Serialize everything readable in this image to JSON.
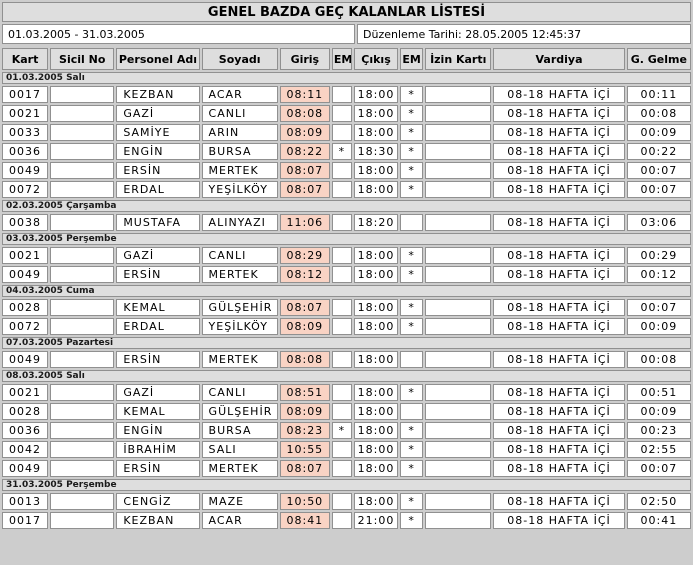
{
  "report": {
    "title": "GENEL BAZDA GEÇ KALANLAR LİSTESİ",
    "date_range": "01.03.2005 - 31.03.2005",
    "prepared_label": "Düzenleme Tarihi: 28.05.2005 12:45:37"
  },
  "colors": {
    "late_highlight": "#f9d3c4",
    "header_bg": "#dedede",
    "page_bg": "#cdcdcd",
    "cell_border": "#909090"
  },
  "table": {
    "columns": [
      "Kart",
      "Sicil No",
      "Personel Adı",
      "Soyadı",
      "Giriş",
      "EM",
      "Çıkış",
      "EM",
      "İzin Kartı",
      "Vardiya",
      "G. Gelme"
    ],
    "groups": [
      {
        "date": "01.03.2005 Salı",
        "rows": [
          {
            "kart": "0017",
            "sicil": "",
            "ad": "KEZBAN",
            "soyad": "ACAR",
            "giris": "08:11",
            "em1": "",
            "cikis": "18:00",
            "em2": "*",
            "izin": "",
            "vardiya": "08-18 HAFTA İÇİ",
            "gec": "00:11"
          },
          {
            "kart": "0021",
            "sicil": "",
            "ad": "GAZİ",
            "soyad": "CANLI",
            "giris": "08:08",
            "em1": "",
            "cikis": "18:00",
            "em2": "*",
            "izin": "",
            "vardiya": "08-18 HAFTA İÇİ",
            "gec": "00:08"
          },
          {
            "kart": "0033",
            "sicil": "",
            "ad": "SAMİYE",
            "soyad": "ARIN",
            "giris": "08:09",
            "em1": "",
            "cikis": "18:00",
            "em2": "*",
            "izin": "",
            "vardiya": "08-18 HAFTA İÇİ",
            "gec": "00:09"
          },
          {
            "kart": "0036",
            "sicil": "",
            "ad": "ENGİN",
            "soyad": "BURSA",
            "giris": "08:22",
            "em1": "*",
            "cikis": "18:30",
            "em2": "*",
            "izin": "",
            "vardiya": "08-18 HAFTA İÇİ",
            "gec": "00:22"
          },
          {
            "kart": "0049",
            "sicil": "",
            "ad": "ERSİN",
            "soyad": "MERTEK",
            "giris": "08:07",
            "em1": "",
            "cikis": "18:00",
            "em2": "*",
            "izin": "",
            "vardiya": "08-18 HAFTA İÇİ",
            "gec": "00:07"
          },
          {
            "kart": "0072",
            "sicil": "",
            "ad": "ERDAL",
            "soyad": "YEŞİLKÖY",
            "giris": "08:07",
            "em1": "",
            "cikis": "18:00",
            "em2": "*",
            "izin": "",
            "vardiya": "08-18 HAFTA İÇİ",
            "gec": "00:07"
          }
        ]
      },
      {
        "date": "02.03.2005 Çarşamba",
        "rows": [
          {
            "kart": "0038",
            "sicil": "",
            "ad": "MUSTAFA",
            "soyad": "ALINYAZI",
            "giris": "11:06",
            "em1": "",
            "cikis": "18:20",
            "em2": "",
            "izin": "",
            "vardiya": "08-18 HAFTA İÇİ",
            "gec": "03:06"
          }
        ]
      },
      {
        "date": "03.03.2005 Perşembe",
        "rows": [
          {
            "kart": "0021",
            "sicil": "",
            "ad": "GAZİ",
            "soyad": "CANLI",
            "giris": "08:29",
            "em1": "",
            "cikis": "18:00",
            "em2": "*",
            "izin": "",
            "vardiya": "08-18 HAFTA İÇİ",
            "gec": "00:29"
          },
          {
            "kart": "0049",
            "sicil": "",
            "ad": "ERSİN",
            "soyad": "MERTEK",
            "giris": "08:12",
            "em1": "",
            "cikis": "18:00",
            "em2": "*",
            "izin": "",
            "vardiya": "08-18 HAFTA İÇİ",
            "gec": "00:12"
          }
        ]
      },
      {
        "date": "04.03.2005 Cuma",
        "rows": [
          {
            "kart": "0028",
            "sicil": "",
            "ad": "KEMAL",
            "soyad": "GÜLŞEHİR",
            "giris": "08:07",
            "em1": "",
            "cikis": "18:00",
            "em2": "*",
            "izin": "",
            "vardiya": "08-18 HAFTA İÇİ",
            "gec": "00:07"
          },
          {
            "kart": "0072",
            "sicil": "",
            "ad": "ERDAL",
            "soyad": "YEŞİLKÖY",
            "giris": "08:09",
            "em1": "",
            "cikis": "18:00",
            "em2": "*",
            "izin": "",
            "vardiya": "08-18 HAFTA İÇİ",
            "gec": "00:09"
          }
        ]
      },
      {
        "date": "07.03.2005 Pazartesi",
        "rows": [
          {
            "kart": "0049",
            "sicil": "",
            "ad": "ERSİN",
            "soyad": "MERTEK",
            "giris": "08:08",
            "em1": "",
            "cikis": "18:00",
            "em2": "",
            "izin": "",
            "vardiya": "08-18 HAFTA İÇİ",
            "gec": "00:08"
          }
        ]
      },
      {
        "date": "08.03.2005 Salı",
        "rows": [
          {
            "kart": "0021",
            "sicil": "",
            "ad": "GAZİ",
            "soyad": "CANLI",
            "giris": "08:51",
            "em1": "",
            "cikis": "18:00",
            "em2": "*",
            "izin": "",
            "vardiya": "08-18 HAFTA İÇİ",
            "gec": "00:51"
          },
          {
            "kart": "0028",
            "sicil": "",
            "ad": "KEMAL",
            "soyad": "GÜLŞEHİR",
            "giris": "08:09",
            "em1": "",
            "cikis": "18:00",
            "em2": "",
            "izin": "",
            "vardiya": "08-18 HAFTA İÇİ",
            "gec": "00:09"
          },
          {
            "kart": "0036",
            "sicil": "",
            "ad": "ENGİN",
            "soyad": "BURSA",
            "giris": "08:23",
            "em1": "*",
            "cikis": "18:00",
            "em2": "*",
            "izin": "",
            "vardiya": "08-18 HAFTA İÇİ",
            "gec": "00:23"
          },
          {
            "kart": "0042",
            "sicil": "",
            "ad": "İBRAHİM",
            "soyad": "SALI",
            "giris": "10:55",
            "em1": "",
            "cikis": "18:00",
            "em2": "*",
            "izin": "",
            "vardiya": "08-18 HAFTA İÇİ",
            "gec": "02:55"
          },
          {
            "kart": "0049",
            "sicil": "",
            "ad": "ERSİN",
            "soyad": "MERTEK",
            "giris": "08:07",
            "em1": "",
            "cikis": "18:00",
            "em2": "*",
            "izin": "",
            "vardiya": "08-18 HAFTA İÇİ",
            "gec": "00:07"
          }
        ]
      },
      {
        "date": "31.03.2005 Perşembe",
        "rows": [
          {
            "kart": "0013",
            "sicil": "",
            "ad": "CENGİZ",
            "soyad": "MAZE",
            "giris": "10:50",
            "em1": "",
            "cikis": "18:00",
            "em2": "*",
            "izin": "",
            "vardiya": "08-18 HAFTA İÇİ",
            "gec": "02:50"
          },
          {
            "kart": "0017",
            "sicil": "",
            "ad": "KEZBAN",
            "soyad": "ACAR",
            "giris": "08:41",
            "em1": "",
            "cikis": "21:00",
            "em2": "*",
            "izin": "",
            "vardiya": "08-18 HAFTA İÇİ",
            "gec": "00:41"
          }
        ]
      }
    ]
  }
}
